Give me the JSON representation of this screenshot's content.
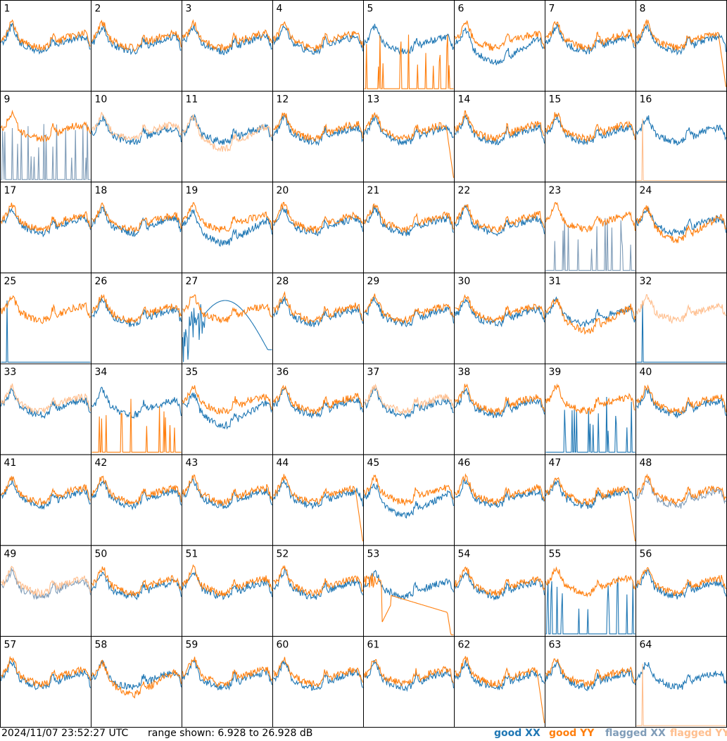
{
  "footer": {
    "timestamp": "2024/11/07 23:52:27 UTC",
    "range": "range shown: 6.928 to 26.928 dB"
  },
  "legend": [
    {
      "label": "good XX",
      "color": "#1f77b4"
    },
    {
      "label": "good YY",
      "color": "#ff7f0e"
    },
    {
      "label": "flagged XX",
      "color": "#7f9cb8"
    },
    {
      "label": "flagged YY",
      "color": "#ffbf8f"
    }
  ],
  "chart_data": {
    "type": "line",
    "grid": {
      "rows": 8,
      "cols": 8
    },
    "y_range_db": [
      6.928,
      26.928
    ],
    "panels": [
      {
        "id": "1",
        "xx": "good",
        "yy": "good",
        "shape": "dip_early"
      },
      {
        "id": "2",
        "xx": "good",
        "yy": "good",
        "shape": "normal"
      },
      {
        "id": "3",
        "xx": "good",
        "yy": "good",
        "shape": "normal"
      },
      {
        "id": "4",
        "xx": "good",
        "yy": "good",
        "shape": "normal"
      },
      {
        "id": "5",
        "xx": "good",
        "yy": "good",
        "shape": "yy_spikes"
      },
      {
        "id": "6",
        "xx": "good",
        "yy": "good",
        "shape": "xx_low"
      },
      {
        "id": "7",
        "xx": "good",
        "yy": "good",
        "shape": "normal"
      },
      {
        "id": "8",
        "xx": "good",
        "yy": "good",
        "shape": "yy_drop_end"
      },
      {
        "id": "9",
        "xx": "flagged",
        "yy": "good",
        "shape": "xx_spikes"
      },
      {
        "id": "10",
        "xx": "good",
        "yy": "flagged",
        "shape": "normal"
      },
      {
        "id": "11",
        "xx": "good",
        "yy": "flagged",
        "shape": "yy_low"
      },
      {
        "id": "12",
        "xx": "good",
        "yy": "good",
        "shape": "normal"
      },
      {
        "id": "13",
        "xx": "good",
        "yy": "good",
        "shape": "yy_drop_end"
      },
      {
        "id": "14",
        "xx": "good",
        "yy": "good",
        "shape": "normal"
      },
      {
        "id": "15",
        "xx": "good",
        "yy": "good",
        "shape": "normal"
      },
      {
        "id": "16",
        "xx": "good",
        "yy": "flagged",
        "shape": "yy_spike_flat"
      },
      {
        "id": "17",
        "xx": "good",
        "yy": "good",
        "shape": "normal"
      },
      {
        "id": "18",
        "xx": "good",
        "yy": "good",
        "shape": "normal"
      },
      {
        "id": "19",
        "xx": "good",
        "yy": "good",
        "shape": "xx_low"
      },
      {
        "id": "20",
        "xx": "good",
        "yy": "good",
        "shape": "normal"
      },
      {
        "id": "21",
        "xx": "good",
        "yy": "good",
        "shape": "normal"
      },
      {
        "id": "22",
        "xx": "good",
        "yy": "good",
        "shape": "normal"
      },
      {
        "id": "23",
        "xx": "flagged",
        "yy": "good",
        "shape": "xx_spikes"
      },
      {
        "id": "24",
        "xx": "good",
        "yy": "good",
        "shape": "yy_low"
      },
      {
        "id": "25",
        "xx": "good",
        "yy": "good",
        "shape": "xx_spike_flat"
      },
      {
        "id": "26",
        "xx": "good",
        "yy": "good",
        "shape": "normal"
      },
      {
        "id": "27",
        "xx": "good",
        "yy": "good",
        "shape": "xx_arc"
      },
      {
        "id": "28",
        "xx": "good",
        "yy": "good",
        "shape": "normal"
      },
      {
        "id": "29",
        "xx": "good",
        "yy": "good",
        "shape": "normal"
      },
      {
        "id": "30",
        "xx": "good",
        "yy": "good",
        "shape": "normal"
      },
      {
        "id": "31",
        "xx": "good",
        "yy": "good",
        "shape": "yy_low"
      },
      {
        "id": "32",
        "xx": "good",
        "yy": "flagged",
        "shape": "xx_spike_flat"
      },
      {
        "id": "33",
        "xx": "good",
        "yy": "flagged",
        "shape": "normal"
      },
      {
        "id": "34",
        "xx": "good",
        "yy": "good",
        "shape": "yy_spikes"
      },
      {
        "id": "35",
        "xx": "good",
        "yy": "good",
        "shape": "xx_low"
      },
      {
        "id": "36",
        "xx": "good",
        "yy": "good",
        "shape": "normal"
      },
      {
        "id": "37",
        "xx": "good",
        "yy": "flagged",
        "shape": "normal"
      },
      {
        "id": "38",
        "xx": "good",
        "yy": "good",
        "shape": "normal"
      },
      {
        "id": "39",
        "xx": "good",
        "yy": "good",
        "shape": "xx_spikes"
      },
      {
        "id": "40",
        "xx": "good",
        "yy": "good",
        "shape": "normal"
      },
      {
        "id": "41",
        "xx": "good",
        "yy": "good",
        "shape": "normal"
      },
      {
        "id": "42",
        "xx": "good",
        "yy": "good",
        "shape": "normal"
      },
      {
        "id": "43",
        "xx": "good",
        "yy": "good",
        "shape": "normal"
      },
      {
        "id": "44",
        "xx": "good",
        "yy": "good",
        "shape": "yy_drop_end"
      },
      {
        "id": "45",
        "xx": "good",
        "yy": "good",
        "shape": "xx_low"
      },
      {
        "id": "46",
        "xx": "good",
        "yy": "good",
        "shape": "normal"
      },
      {
        "id": "47",
        "xx": "good",
        "yy": "good",
        "shape": "yy_drop_end"
      },
      {
        "id": "48",
        "xx": "flagged",
        "yy": "good",
        "shape": "normal"
      },
      {
        "id": "49",
        "xx": "flagged",
        "yy": "flagged",
        "shape": "normal"
      },
      {
        "id": "50",
        "xx": "good",
        "yy": "good",
        "shape": "normal"
      },
      {
        "id": "51",
        "xx": "good",
        "yy": "good",
        "shape": "normal"
      },
      {
        "id": "52",
        "xx": "good",
        "yy": "good",
        "shape": "normal"
      },
      {
        "id": "53",
        "xx": "good",
        "yy": "good",
        "shape": "yy_dip"
      },
      {
        "id": "54",
        "xx": "good",
        "yy": "good",
        "shape": "normal"
      },
      {
        "id": "55",
        "xx": "good",
        "yy": "good",
        "shape": "xx_spikes"
      },
      {
        "id": "56",
        "xx": "good",
        "yy": "good",
        "shape": "normal"
      },
      {
        "id": "57",
        "xx": "good",
        "yy": "good",
        "shape": "normal"
      },
      {
        "id": "58",
        "xx": "good",
        "yy": "good",
        "shape": "yy_low"
      },
      {
        "id": "59",
        "xx": "good",
        "yy": "good",
        "shape": "normal"
      },
      {
        "id": "60",
        "xx": "good",
        "yy": "good",
        "shape": "normal"
      },
      {
        "id": "61",
        "xx": "good",
        "yy": "good",
        "shape": "normal"
      },
      {
        "id": "62",
        "xx": "good",
        "yy": "good",
        "shape": "yy_low_flat"
      },
      {
        "id": "63",
        "xx": "good",
        "yy": "good",
        "shape": "normal"
      },
      {
        "id": "64",
        "xx": "good",
        "yy": "flagged",
        "shape": "yy_spike_flat"
      }
    ]
  }
}
